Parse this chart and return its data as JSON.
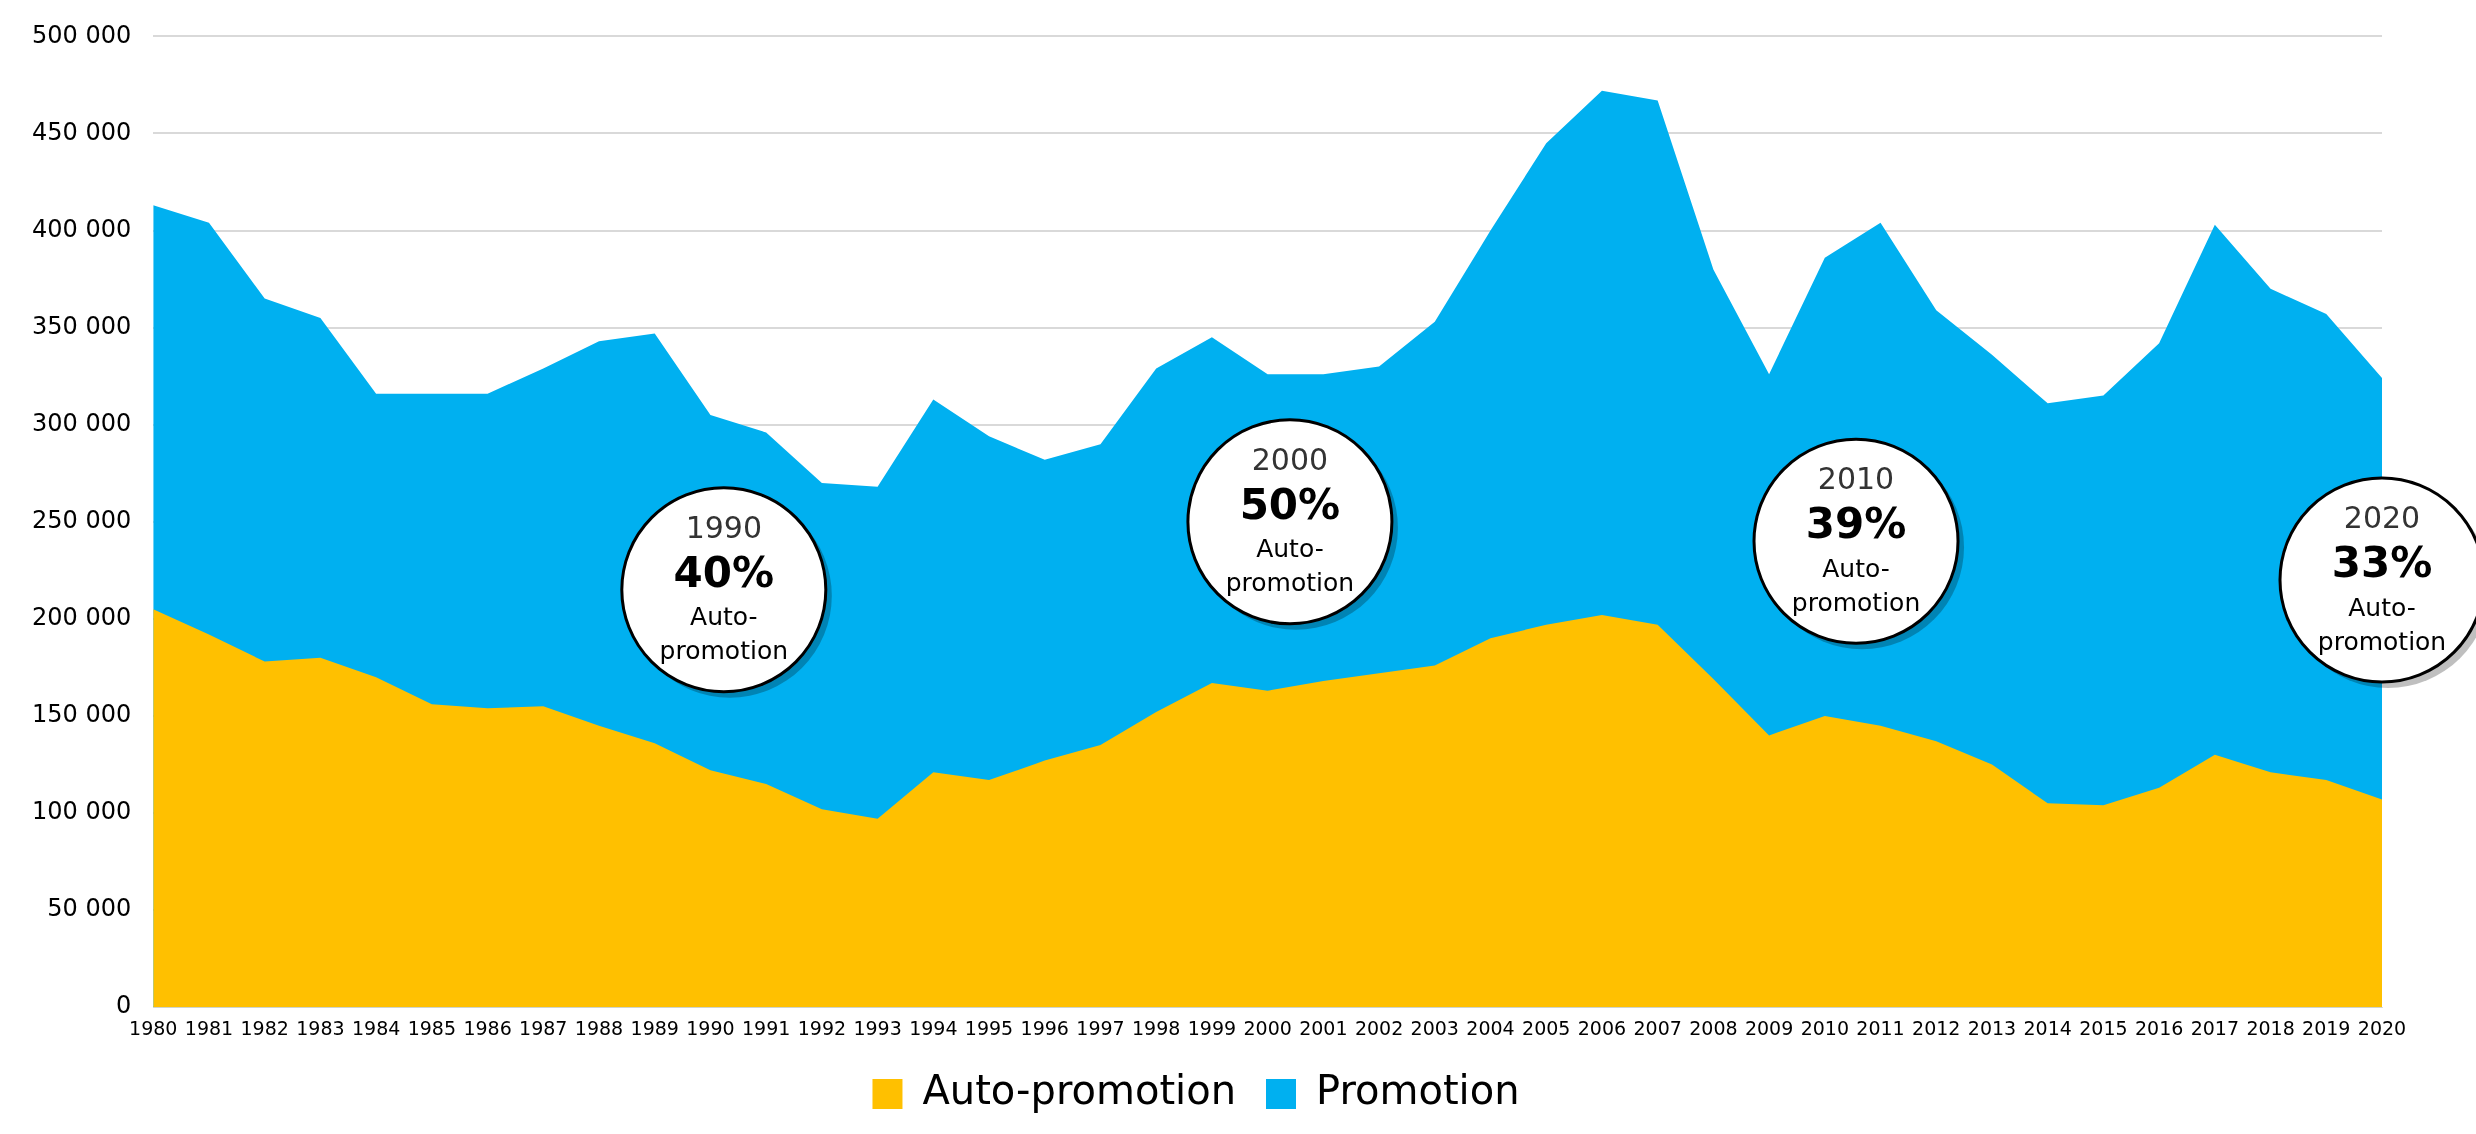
{
  "chart_data": {
    "type": "area",
    "stacked": true,
    "categories": [
      "1980",
      "1981",
      "1982",
      "1983",
      "1984",
      "1985",
      "1986",
      "1987",
      "1988",
      "1989",
      "1990",
      "1991",
      "1992",
      "1993",
      "1994",
      "1995",
      "1996",
      "1997",
      "1998",
      "1999",
      "2000",
      "2001",
      "2002",
      "2003",
      "2004",
      "2005",
      "2006",
      "2007",
      "2008",
      "2009",
      "2010",
      "2011",
      "2012",
      "2013",
      "2014",
      "2015",
      "2016",
      "2017",
      "2018",
      "2019",
      "2020"
    ],
    "series": [
      {
        "name": "Auto-promotion",
        "color": "#ffc000",
        "values": [
          205000,
          192000,
          178000,
          180000,
          170000,
          156000,
          154000,
          155000,
          145000,
          136000,
          122000,
          115000,
          102000,
          97000,
          121000,
          117000,
          127000,
          135000,
          152000,
          167000,
          163000,
          168000,
          172000,
          176000,
          190000,
          197000,
          202000,
          197000,
          169000,
          140000,
          150000,
          145000,
          137000,
          125000,
          105000,
          104000,
          113000,
          130000,
          121000,
          117000,
          107000
        ]
      },
      {
        "name": "Promotion",
        "color": "#00b0f0",
        "values": [
          208000,
          212000,
          187000,
          175000,
          146000,
          160000,
          162000,
          174000,
          198000,
          211000,
          183000,
          181000,
          168000,
          171000,
          192000,
          177000,
          155000,
          155000,
          177000,
          178000,
          163000,
          158000,
          158000,
          177000,
          210000,
          248000,
          270000,
          270000,
          211000,
          186000,
          236000,
          259000,
          222000,
          211000,
          206000,
          211000,
          229000,
          273000,
          249000,
          240000,
          217000
        ]
      }
    ],
    "ylim": [
      0,
      500000
    ],
    "yticks": [
      {
        "value": 0,
        "label": "0"
      },
      {
        "value": 50000,
        "label": "50 000"
      },
      {
        "value": 100000,
        "label": "100 000"
      },
      {
        "value": 150000,
        "label": "150 000"
      },
      {
        "value": 200000,
        "label": "200 000"
      },
      {
        "value": 250000,
        "label": "250 000"
      },
      {
        "value": 300000,
        "label": "300 000"
      },
      {
        "value": 350000,
        "label": "350 000"
      },
      {
        "value": 400000,
        "label": "400 000"
      },
      {
        "value": 450000,
        "label": "450 000"
      },
      {
        "value": 500000,
        "label": "500 000"
      }
    ],
    "grid": "y",
    "legend": "bottom",
    "annotations": [
      "1990\n40%\nAuto-\npromotion",
      "2000\n50%\nAuto-\npromotion",
      "2010\n39%\nAuto-\npromotion",
      "2020\n33%\nAuto-\npromotion"
    ]
  }
}
